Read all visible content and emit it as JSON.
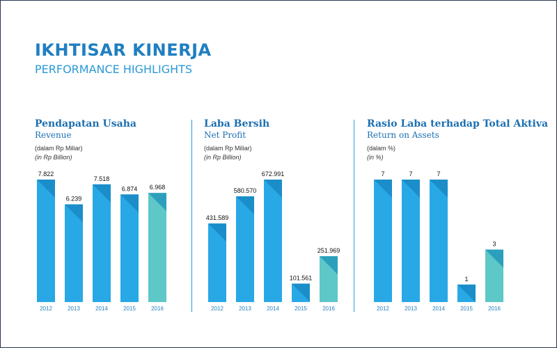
{
  "header": {
    "title": "IKHTISAR KINERJA",
    "subtitle": "PERFORMANCE HIGHLIGHTS"
  },
  "colors": {
    "bar": "#29a8e6",
    "bar_highlight": "#5ec7c7",
    "bar_corner": "#1b8ec9",
    "bar_corner_highlight": "#2c9fbd",
    "text_blue": "#1c6fb0"
  },
  "panels": [
    {
      "title": "Pendapatan Usaha",
      "subtitle": "Revenue",
      "unit_id": "(dalam Rp Miliar)",
      "unit_en": "(in Rp Billion)",
      "value_labels": [
        "7.822",
        "6.239",
        "7.518",
        "6.874",
        "6.968"
      ]
    },
    {
      "title": "Laba Bersih",
      "subtitle": "Net Profit",
      "unit_id": "(dalam Rp Miliar)",
      "unit_en": "(in Rp Billion)",
      "value_labels": [
        "431.589",
        "580.570",
        "672.991",
        "101.561",
        "251.969"
      ]
    },
    {
      "title": "Rasio Laba terhadap Total Aktiva",
      "subtitle": "Return on Assets",
      "unit_id": "(dalam %)",
      "unit_en": "(in %)",
      "value_labels": [
        "7",
        "7",
        "7",
        "1",
        "3"
      ]
    }
  ],
  "chart_data": [
    {
      "type": "bar",
      "title": "Pendapatan Usaha",
      "subtitle": "Revenue",
      "ylabel": "(dalam Rp Miliar)",
      "categories": [
        "2012",
        "2013",
        "2014",
        "2015",
        "2016"
      ],
      "values": [
        7822,
        6239,
        7518,
        6874,
        6968
      ],
      "highlight_index": 4,
      "ylim": [
        0,
        7822
      ],
      "grid": false
    },
    {
      "type": "bar",
      "title": "Laba Bersih",
      "subtitle": "Net Profit",
      "ylabel": "(dalam Rp Miliar)",
      "categories": [
        "2012",
        "2013",
        "2014",
        "2015",
        "2016"
      ],
      "values": [
        431.589,
        580.57,
        672.991,
        101.561,
        251.969
      ],
      "highlight_index": 4,
      "ylim": [
        0,
        672.991
      ],
      "grid": false
    },
    {
      "type": "bar",
      "title": "Rasio Laba terhadap Total Aktiva",
      "subtitle": "Return on Assets",
      "ylabel": "(dalam %)",
      "categories": [
        "2012",
        "2013",
        "2014",
        "2015",
        "2016"
      ],
      "values": [
        7,
        7,
        7,
        1,
        3
      ],
      "highlight_index": 4,
      "ylim": [
        0,
        7
      ],
      "grid": false
    }
  ]
}
